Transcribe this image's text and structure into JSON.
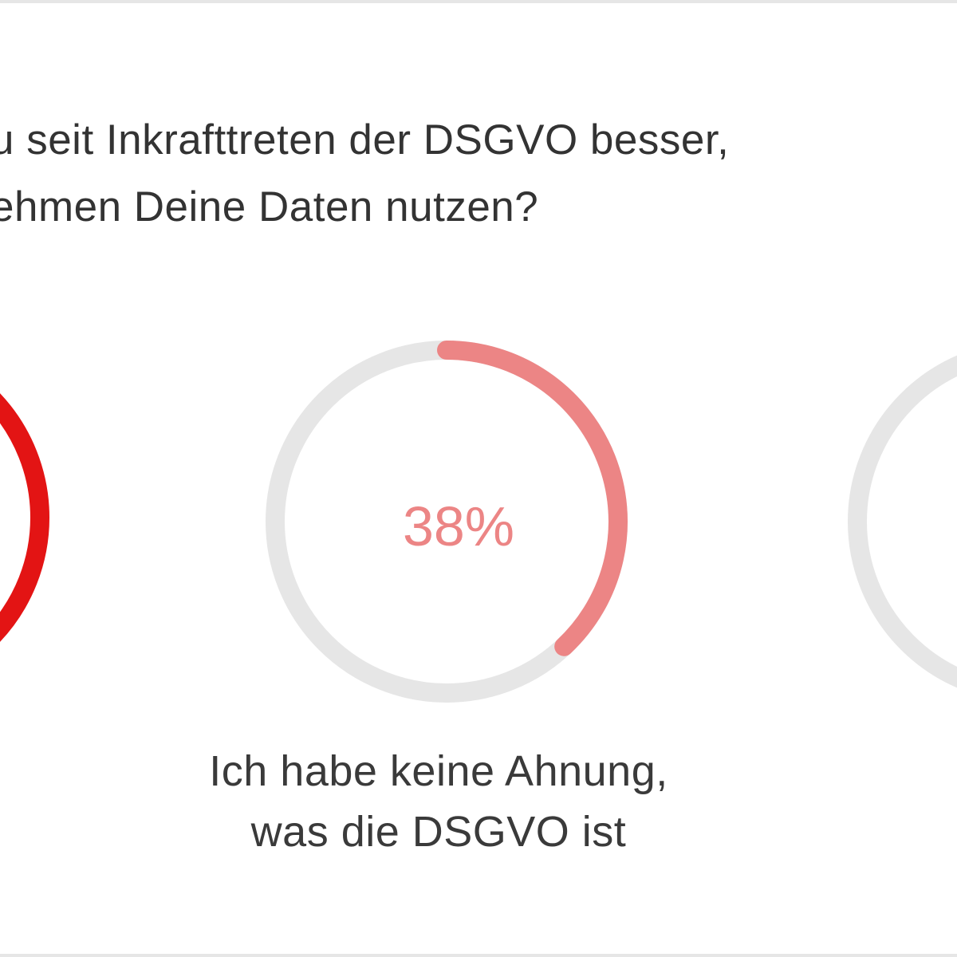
{
  "question": {
    "line1": "u seit Inkrafttreten der DSGVO besser,",
    "line2": "ehmen Deine Daten nutzen?"
  },
  "colors": {
    "track": "#e6e6e6",
    "answer_1": "#e31414",
    "answer_2": "#ec8585",
    "text": "#333333"
  },
  "chart_data": {
    "type": "pie",
    "charts": [
      {
        "id": "answer-1",
        "value": null,
        "label_lines": [],
        "color": "#e31414",
        "visible": "partial"
      },
      {
        "id": "answer-2",
        "value": 38,
        "value_label": "38%",
        "label_lines": [
          "Ich habe keine Ahnung,",
          "was die DSGVO ist"
        ],
        "color": "#ec8585",
        "visible": "full"
      },
      {
        "id": "answer-3",
        "value": null,
        "label_lines": [],
        "color": "#e6e6e6",
        "visible": "partial"
      }
    ]
  }
}
